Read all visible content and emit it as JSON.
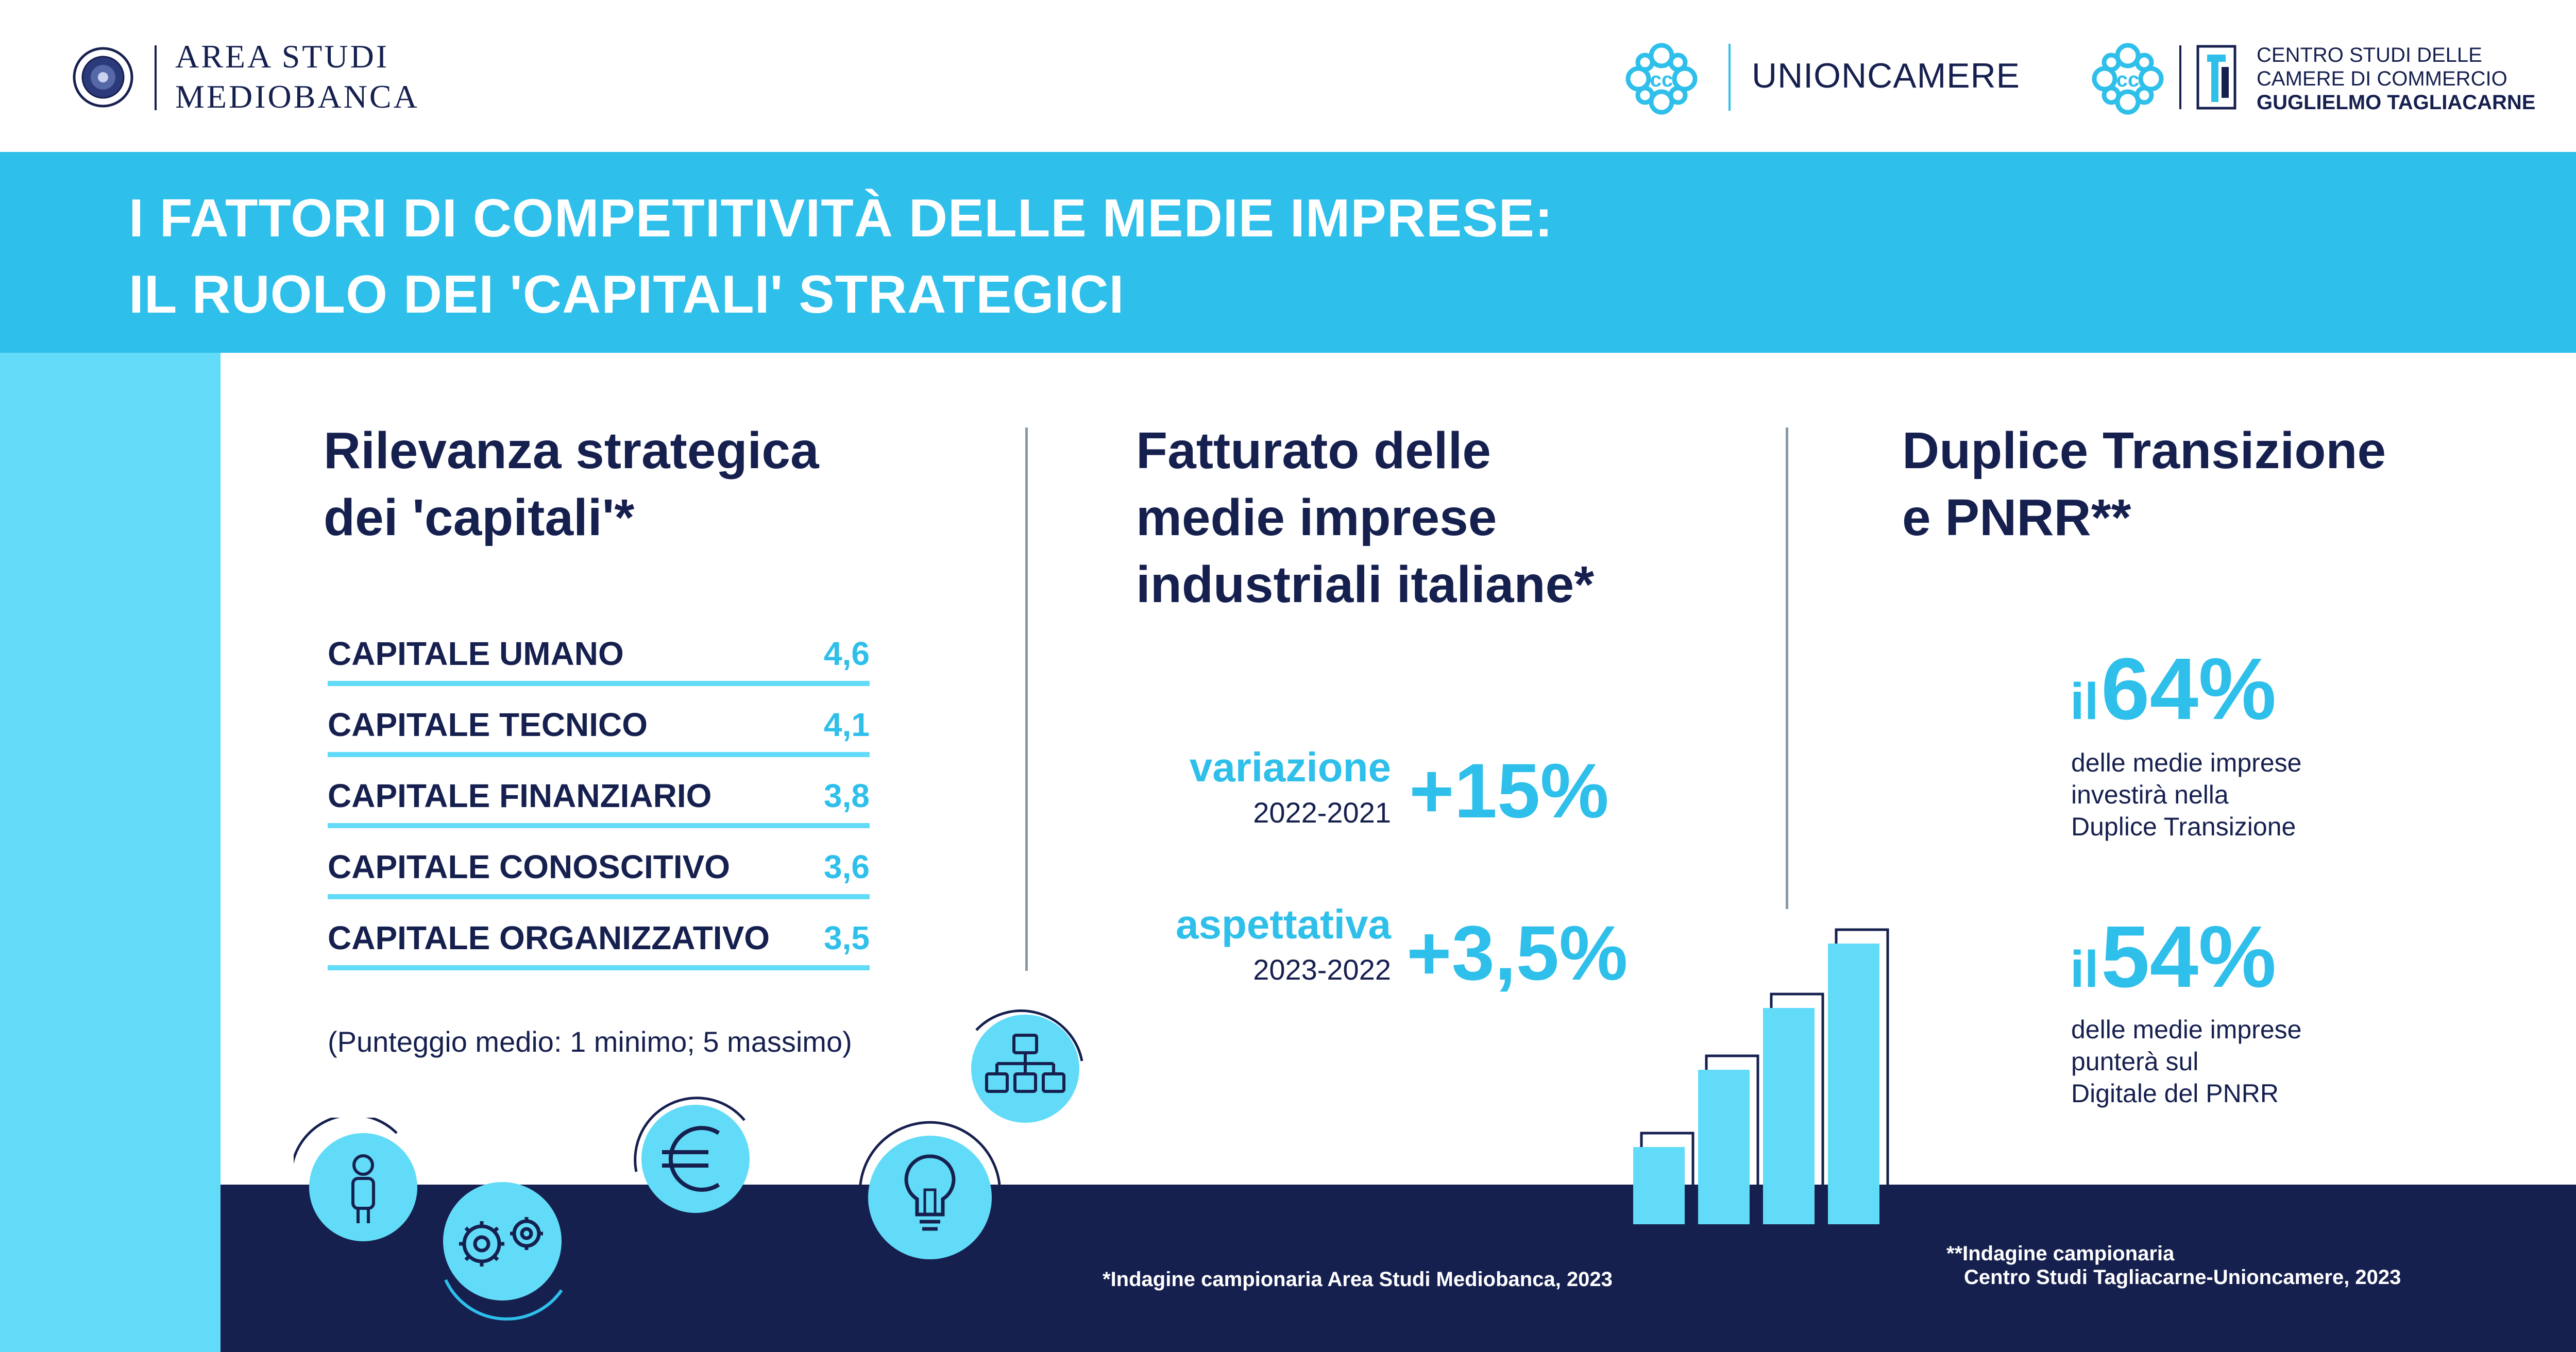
{
  "header": {
    "mediobanca": {
      "line1": "AREA STUDI",
      "line2": "MEDIOBANCA"
    },
    "unioncamere": {
      "name": "UNIONCAMERE"
    },
    "tagliacarne": {
      "line1": "CENTRO STUDI DELLE",
      "line2": "CAMERE DI COMMERCIO",
      "line3": "GUGLIELMO TAGLIACARNE"
    }
  },
  "banner": {
    "line1": "I FATTORI DI COMPETITIVITÀ DELLE MEDIE IMPRESE:",
    "line2": "IL RUOLO DEI 'CAPITALI' STRATEGICI"
  },
  "capitali": {
    "title_line1": "Rilevanza strategica",
    "title_line2": "dei 'capitali'*",
    "rows": [
      {
        "label": "CAPITALE UMANO",
        "value": "4,6"
      },
      {
        "label": "CAPITALE TECNICO",
        "value": "4,1"
      },
      {
        "label": "CAPITALE FINANZIARIO",
        "value": "3,8"
      },
      {
        "label": "CAPITALE CONOSCITIVO",
        "value": "3,6"
      },
      {
        "label": "CAPITALE ORGANIZZATIVO",
        "value": "3,5"
      }
    ],
    "note": "(Punteggio medio: 1 minimo; 5 massimo)"
  },
  "fatturato": {
    "title_line1": "Fatturato delle",
    "title_line2": "medie imprese",
    "title_line3": "industriali italiane*",
    "variazione": {
      "label": "variazione",
      "period": "2022-2021",
      "value": "+15%"
    },
    "aspettativa": {
      "label": "aspettativa",
      "period": "2023-2022",
      "value": "+3,5%"
    }
  },
  "transizione": {
    "title_line1": "Duplice Transizione",
    "title_line2": "e PNRR**",
    "stat1": {
      "prefix": "il",
      "value": "64%",
      "line1": "delle medie imprese",
      "line2": "investirà nella",
      "line3": "Duplice Transizione"
    },
    "stat2": {
      "prefix": "il",
      "value": "54%",
      "line1": "delle medie imprese",
      "line2": "punterà sul",
      "line3": "Digitale del PNRR"
    }
  },
  "footnotes": {
    "left": "*Indagine campionaria Area Studi Mediobanca, 2023",
    "right_line1": "**Indagine campionaria",
    "right_line2": "Centro Studi Tagliacarne-Unioncamere, 2023"
  },
  "icons": [
    "person-icon",
    "gears-icon",
    "euro-icon",
    "lightbulb-icon",
    "org-chart-icon",
    "bar-chart-icon"
  ],
  "colors": {
    "navy": "#16204f",
    "cyan": "#2ebfea",
    "light_cyan": "#62dbf8"
  }
}
